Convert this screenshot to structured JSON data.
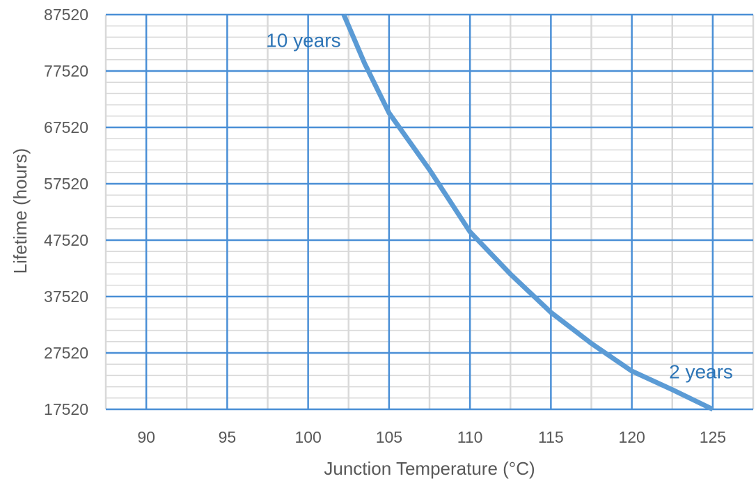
{
  "chart_data": {
    "type": "line",
    "title": "",
    "xlabel": "Junction Temperature (°C)",
    "ylabel": "Lifetime  (hours)",
    "xlim": [
      87.5,
      127.5
    ],
    "ylim": [
      17520,
      87520
    ],
    "x_ticks": [
      90,
      95,
      100,
      105,
      110,
      115,
      120,
      125
    ],
    "y_ticks": [
      17520,
      27520,
      37520,
      47520,
      57520,
      67520,
      77520,
      87520
    ],
    "grid": true,
    "legend": "none",
    "series": [
      {
        "color": "#5b9bd5",
        "x": [
          102.2,
          103.5,
          105,
          107.5,
          110,
          112.5,
          115,
          117.5,
          120,
          122.5,
          125
        ],
        "y": [
          87520,
          78800,
          70080,
          60000,
          49000,
          41500,
          34700,
          29200,
          24300,
          21000,
          17520
        ]
      }
    ],
    "annotations": [
      {
        "text": "10 years",
        "x": 97.4,
        "y": 81800
      },
      {
        "text": "2 years",
        "x": 122.3,
        "y": 23000
      }
    ],
    "colors": {
      "major_grid": "#4a8fd6",
      "minor_grid": "#d9d9d9",
      "line": "#5b9bd5",
      "annotation": "#2e75b6",
      "tick_text": "#595959"
    }
  }
}
